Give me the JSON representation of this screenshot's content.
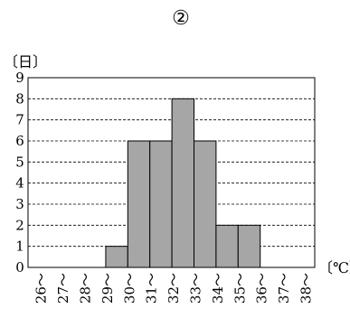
{
  "chart_data": {
    "type": "bar",
    "title": "②",
    "ylabel": "〔日〕",
    "xlabel": "〔℃〕",
    "ylim": [
      0,
      9
    ],
    "yticks": [
      0,
      1,
      2,
      3,
      4,
      5,
      6,
      7,
      8,
      9
    ],
    "categories": [
      "26～",
      "27～",
      "28～",
      "29～",
      "30～",
      "31～",
      "32～",
      "33～",
      "34～",
      "35～",
      "36～",
      "37～",
      "38～"
    ],
    "values": [
      0,
      0,
      0,
      1,
      6,
      6,
      8,
      6,
      2,
      2,
      0,
      0,
      0
    ],
    "grid": "horizontal-dashed",
    "bar_color": "#a6a6a6",
    "edge_color": "#000000"
  }
}
